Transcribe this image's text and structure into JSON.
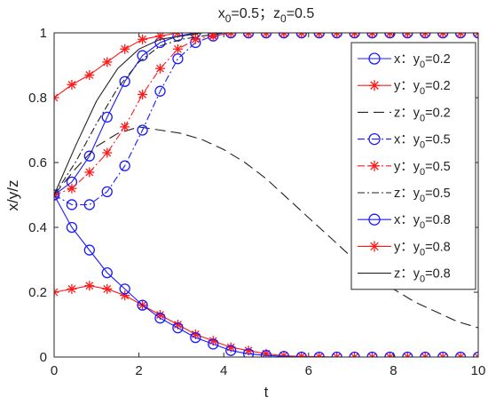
{
  "chart_data": {
    "type": "line",
    "title": {
      "x_part": "x",
      "x_sub": "0",
      "x_eq": "=0.5；",
      "z_part": "z",
      "z_sub": "0",
      "z_eq": "=0.5"
    },
    "xlabel": "t",
    "ylabel": "x/y/z",
    "xlim": [
      0,
      10
    ],
    "ylim": [
      0,
      1
    ],
    "xticks": [
      "0",
      "2",
      "4",
      "6",
      "8",
      "10"
    ],
    "yticks": [
      "0",
      "0.2",
      "0.4",
      "0.6",
      "0.8",
      "1"
    ],
    "grid": false,
    "legend_position": "top-right",
    "colors": {
      "blue": "#1a1aff",
      "red": "#ff1a1a",
      "black": "#222222"
    },
    "series": [
      {
        "name": "x：y0=0.2",
        "var": "x",
        "y0": "0.2",
        "color": "blue",
        "dash": "solid",
        "marker": "circle",
        "x": [
          0,
          0.417,
          0.833,
          1.25,
          1.667,
          2.083,
          2.5,
          2.917,
          3.333,
          3.75,
          4.167,
          4.583,
          5,
          5.417,
          5.833,
          6.25,
          6.667,
          7.083,
          7.5,
          7.917,
          8.333,
          8.75,
          9.167,
          9.583,
          10
        ],
        "y": [
          0.5,
          0.54,
          0.62,
          0.74,
          0.85,
          0.93,
          0.97,
          0.99,
          1.0,
          1.0,
          1.0,
          1.0,
          1.0,
          1.0,
          1.0,
          1.0,
          1.0,
          1.0,
          1.0,
          1.0,
          1.0,
          1.0,
          1.0,
          1.0,
          1.0
        ]
      },
      {
        "name": "y：y0=0.2",
        "var": "y",
        "y0": "0.2",
        "color": "red",
        "dash": "solid",
        "marker": "star",
        "x": [
          0,
          0.417,
          0.833,
          1.25,
          1.667,
          2.083,
          2.5,
          2.917,
          3.333,
          3.75,
          4.167,
          4.583,
          5,
          5.417,
          5.833,
          6.25,
          6.667,
          7.083,
          7.5,
          7.917,
          8.333,
          8.75,
          9.167,
          9.583,
          10
        ],
        "y": [
          0.2,
          0.21,
          0.22,
          0.21,
          0.19,
          0.16,
          0.13,
          0.1,
          0.07,
          0.05,
          0.03,
          0.02,
          0.01,
          0.004,
          0.002,
          0.001,
          0,
          0,
          0,
          0,
          0,
          0,
          0,
          0,
          0
        ]
      },
      {
        "name": "z：y0=0.2",
        "var": "z",
        "y0": "0.2",
        "color": "black",
        "dash": "dashed",
        "marker": "none",
        "x": [
          0,
          0.5,
          1,
          1.5,
          2,
          2.5,
          3,
          3.5,
          4,
          4.5,
          5,
          5.5,
          6,
          6.5,
          7,
          7.5,
          8,
          8.5,
          9,
          9.5,
          10
        ],
        "y": [
          0.5,
          0.58,
          0.65,
          0.69,
          0.71,
          0.7,
          0.69,
          0.67,
          0.64,
          0.6,
          0.55,
          0.49,
          0.43,
          0.37,
          0.31,
          0.26,
          0.21,
          0.17,
          0.14,
          0.11,
          0.09
        ]
      },
      {
        "name": "x：y0=0.5",
        "var": "x",
        "y0": "0.5",
        "color": "blue",
        "dash": "dashdot",
        "marker": "circle",
        "x": [
          0,
          0.417,
          0.833,
          1.25,
          1.667,
          2.083,
          2.5,
          2.917,
          3.333,
          3.75,
          4.167,
          4.583,
          5,
          5.417,
          5.833,
          6.25,
          6.667,
          7.083,
          7.5,
          7.917,
          8.333,
          8.75,
          9.167,
          9.583,
          10
        ],
        "y": [
          0.5,
          0.47,
          0.47,
          0.51,
          0.59,
          0.7,
          0.82,
          0.92,
          0.97,
          0.99,
          1.0,
          1.0,
          1.0,
          1.0,
          1.0,
          1.0,
          1.0,
          1.0,
          1.0,
          1.0,
          1.0,
          1.0,
          1.0,
          1.0,
          1.0
        ]
      },
      {
        "name": "y：y0=0.5",
        "var": "y",
        "y0": "0.5",
        "color": "red",
        "dash": "dashdot",
        "marker": "star",
        "x": [
          0,
          0.417,
          0.833,
          1.25,
          1.667,
          2.083,
          2.5,
          2.917,
          3.333,
          3.75,
          4.167,
          4.583,
          5,
          5.417,
          5.833,
          6.25,
          6.667,
          7.083,
          7.5,
          7.917,
          8.333,
          8.75,
          9.167,
          9.583,
          10
        ],
        "y": [
          0.5,
          0.52,
          0.57,
          0.63,
          0.71,
          0.81,
          0.89,
          0.95,
          0.98,
          0.99,
          1.0,
          1.0,
          1.0,
          1.0,
          1.0,
          1.0,
          1.0,
          1.0,
          1.0,
          1.0,
          1.0,
          1.0,
          1.0,
          1.0,
          1.0
        ]
      },
      {
        "name": "z：y0=0.5",
        "var": "z",
        "y0": "0.5",
        "color": "black",
        "dash": "dashdot",
        "marker": "none",
        "x": [
          0,
          0.5,
          1,
          1.5,
          2,
          2.5,
          3,
          3.5,
          4,
          4.5,
          5,
          5.5,
          6,
          6.5,
          7,
          7.5,
          8,
          8.5,
          9,
          9.5,
          10
        ],
        "y": [
          0.5,
          0.6,
          0.72,
          0.83,
          0.91,
          0.96,
          0.98,
          0.99,
          1.0,
          1.0,
          1.0,
          1.0,
          1.0,
          1.0,
          1.0,
          1.0,
          1.0,
          1.0,
          1.0,
          1.0,
          1.0
        ]
      },
      {
        "name": "x：y0=0.8",
        "var": "x",
        "y0": "0.8",
        "color": "blue",
        "dash": "solid",
        "marker": "circle",
        "x": [
          0,
          0.417,
          0.833,
          1.25,
          1.667,
          2.083,
          2.5,
          2.917,
          3.333,
          3.75,
          4.167,
          4.583,
          5,
          5.417,
          5.833,
          6.25,
          6.667,
          7.083,
          7.5,
          7.917,
          8.333,
          8.75,
          9.167,
          9.583,
          10
        ],
        "y": [
          0.5,
          0.4,
          0.33,
          0.26,
          0.21,
          0.16,
          0.12,
          0.09,
          0.06,
          0.04,
          0.02,
          0.01,
          0.005,
          0.002,
          0,
          0,
          0,
          0,
          0,
          0,
          0,
          0,
          0,
          0,
          0
        ]
      },
      {
        "name": "y：y0=0.8",
        "var": "y",
        "y0": "0.8",
        "color": "red",
        "dash": "solid",
        "marker": "star",
        "x": [
          0,
          0.417,
          0.833,
          1.25,
          1.667,
          2.083,
          2.5,
          2.917,
          3.333,
          3.75,
          4.167,
          4.583,
          5,
          5.417,
          5.833,
          6.25,
          6.667,
          7.083,
          7.5,
          7.917,
          8.333,
          8.75,
          9.167,
          9.583,
          10
        ],
        "y": [
          0.8,
          0.84,
          0.87,
          0.91,
          0.95,
          0.98,
          0.99,
          1.0,
          1.0,
          1.0,
          1.0,
          1.0,
          1.0,
          1.0,
          1.0,
          1.0,
          1.0,
          1.0,
          1.0,
          1.0,
          1.0,
          1.0,
          1.0,
          1.0,
          1.0
        ]
      },
      {
        "name": "z：y0=0.8",
        "var": "z",
        "y0": "0.8",
        "color": "black",
        "dash": "solid",
        "marker": "none",
        "x": [
          0,
          0.5,
          1,
          1.5,
          2,
          2.5,
          3,
          3.5,
          4,
          4.5,
          5,
          5.5,
          6,
          6.5,
          7,
          7.5,
          8,
          8.5,
          9,
          9.5,
          10
        ],
        "y": [
          0.5,
          0.65,
          0.79,
          0.89,
          0.95,
          0.98,
          0.99,
          1.0,
          1.0,
          1.0,
          1.0,
          1.0,
          1.0,
          1.0,
          1.0,
          1.0,
          1.0,
          1.0,
          1.0,
          1.0,
          1.0
        ]
      }
    ]
  }
}
